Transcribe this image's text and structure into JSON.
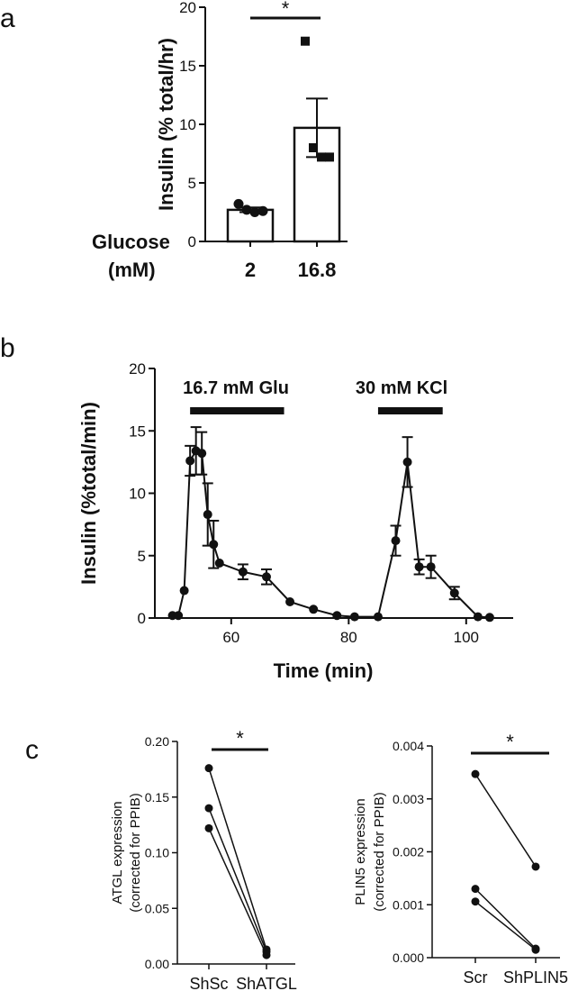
{
  "panels": {
    "a": "a",
    "b": "b",
    "c": "c"
  },
  "chart_data": [
    {
      "id": "a",
      "type": "bar",
      "ylabel": "Insulin (% total/hr)",
      "xlabel_line1": "Glucose",
      "xlabel_line2": "(mM)",
      "categories": [
        "2",
        "16.8"
      ],
      "means": [
        2.7,
        9.7
      ],
      "sem": [
        0.2,
        2.5
      ],
      "points": [
        [
          3.2,
          2.7,
          2.5,
          2.6
        ],
        [
          17.1,
          8.0,
          7.2,
          7.2
        ]
      ],
      "point_markers": [
        "circle",
        "square"
      ],
      "ylim": [
        0,
        20
      ],
      "yticks": [
        0,
        5,
        10,
        15,
        20
      ],
      "significance": "*"
    },
    {
      "id": "b",
      "type": "line",
      "ylabel": "Insulin (%total/min)",
      "xlabel": "Time (min)",
      "xlim": [
        47,
        108
      ],
      "ylim": [
        0,
        20
      ],
      "xticks": [
        60,
        80,
        100
      ],
      "yticks": [
        0,
        5,
        10,
        15,
        20
      ],
      "x": [
        50,
        51,
        52,
        53,
        54,
        55,
        56,
        57,
        58,
        62,
        66,
        70,
        74,
        78,
        81,
        85,
        88,
        90,
        92,
        94,
        98,
        102,
        104
      ],
      "y": [
        0.2,
        0.2,
        2.2,
        12.6,
        13.4,
        13.2,
        8.3,
        5.9,
        4.4,
        3.7,
        3.3,
        1.3,
        0.7,
        0.2,
        0.1,
        0.1,
        6.2,
        12.5,
        4.1,
        4.1,
        2.0,
        0.1,
        0.05
      ],
      "err": [
        0,
        0,
        0,
        1.2,
        1.9,
        1.7,
        2.5,
        1.9,
        0,
        0.6,
        0.6,
        0,
        0,
        0,
        0,
        0,
        1.2,
        2.0,
        0.6,
        0.9,
        0.5,
        0,
        0
      ],
      "stim_bars": [
        {
          "label": "16.7 mM Glu",
          "start": 53,
          "end": 69
        },
        {
          "label": "30 mM KCl",
          "start": 85,
          "end": 96
        }
      ]
    },
    {
      "id": "c1",
      "type": "scatter",
      "ylabel_line1": "ATGL expression",
      "ylabel_line2": "(corrected for PPIB)",
      "categories": [
        "ShSc",
        "ShATGL"
      ],
      "ylim": [
        0,
        0.2
      ],
      "yticks": [
        "0.00",
        "0.05",
        "0.10",
        "0.15",
        "0.20"
      ],
      "pairs": [
        [
          0.176,
          0.013
        ],
        [
          0.14,
          0.011
        ],
        [
          0.122,
          0.008
        ]
      ],
      "significance": "*"
    },
    {
      "id": "c2",
      "type": "scatter",
      "ylabel_line1": "PLIN5 expression",
      "ylabel_line2": "(corrected for PPIB)",
      "categories": [
        "Scr",
        "ShPLIN5"
      ],
      "ylim": [
        0,
        0.004
      ],
      "yticks": [
        "0.000",
        "0.001",
        "0.002",
        "0.003",
        "0.004"
      ],
      "pairs": [
        [
          0.00347,
          0.00172
        ],
        [
          0.0013,
          0.00017
        ],
        [
          0.00106,
          0.00015
        ]
      ],
      "significance": "*"
    }
  ]
}
